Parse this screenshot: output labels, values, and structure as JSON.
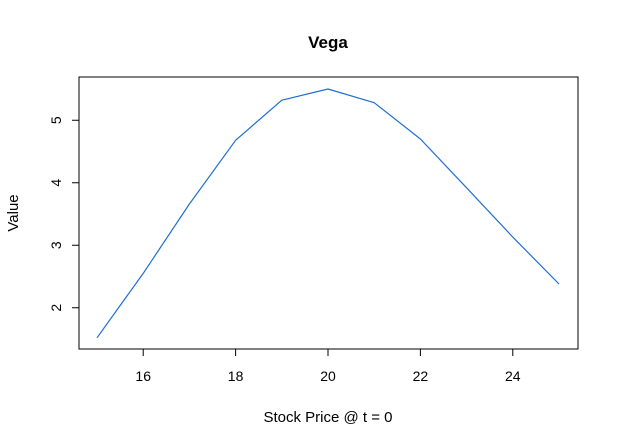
{
  "chart_data": {
    "type": "line",
    "title": "Vega",
    "xlabel": "Stock Price @ t = 0",
    "ylabel": "Value",
    "xlim": [
      15,
      25
    ],
    "ylim": [
      1.5,
      5.5
    ],
    "x_ticks": [
      16,
      18,
      20,
      22,
      24
    ],
    "y_ticks": [
      2,
      3,
      4,
      5
    ],
    "grid": false,
    "line_color": "#1f6ed4",
    "series": [
      {
        "x": [
          15,
          16,
          17,
          18,
          19,
          20,
          21,
          22,
          23,
          24,
          25
        ],
        "values": [
          1.52,
          2.55,
          3.66,
          4.68,
          5.32,
          5.5,
          5.28,
          4.7,
          3.92,
          3.13,
          2.38
        ]
      }
    ]
  }
}
